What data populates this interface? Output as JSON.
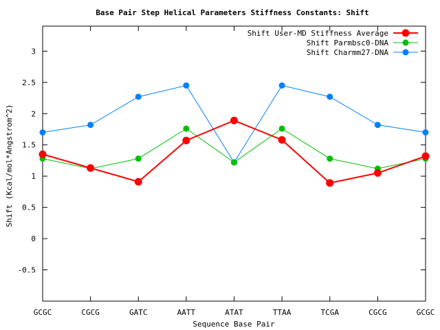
{
  "chart_data": {
    "type": "line",
    "title": "Base Pair Step Helical Parameters Stiffness Constants: Shift",
    "xlabel": "Sequence Base Pair",
    "ylabel": "Shift (Kcal/mol*Angstrom^2)",
    "categories": [
      "GCGC",
      "CGCG",
      "GATC",
      "AATT",
      "ATAT",
      "TTAA",
      "TCGA",
      "CGCG",
      "GCGC"
    ],
    "ylim": [
      -1,
      3.4
    ],
    "yticks": [
      -0.5,
      0,
      0.5,
      1,
      1.5,
      2,
      2.5,
      3
    ],
    "ytick_labels": [
      "-0.5",
      "0",
      "0.5",
      "1",
      "1.5",
      "2",
      "2.5",
      "3"
    ],
    "grid": false,
    "legend_position": "top-right",
    "series": [
      {
        "name": "Shift User-MD Stiffness Average",
        "color": "#ff0000",
        "values": [
          1.35,
          1.13,
          0.91,
          1.57,
          1.89,
          1.58,
          0.89,
          1.05,
          1.32
        ]
      },
      {
        "name": "Shift Parmbsc0-DNA",
        "color": "#00c000",
        "values": [
          1.28,
          1.12,
          1.28,
          1.76,
          1.22,
          1.76,
          1.28,
          1.12,
          1.28
        ]
      },
      {
        "name": "Shift Charmm27-DNA",
        "color": "#0080ff",
        "values": [
          1.7,
          1.82,
          2.27,
          2.45,
          1.22,
          2.45,
          2.27,
          1.82,
          1.7
        ]
      }
    ]
  }
}
